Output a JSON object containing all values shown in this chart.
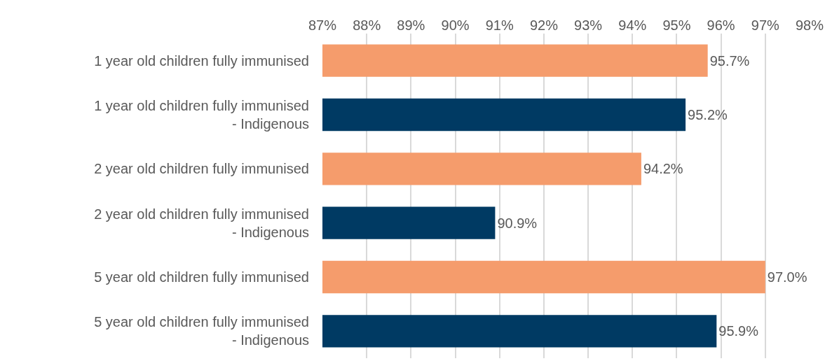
{
  "chart_data": {
    "type": "bar",
    "orientation": "horizontal",
    "categories": [
      "1 year old children fully immunised",
      "1 year old children fully immunised - Indigenous",
      "2 year old children fully immunised",
      "2 year old children fully immunised - Indigenous",
      "5 year old children fully immunised",
      "5 year old children fully immunised - Indigenous"
    ],
    "values": [
      95.7,
      95.2,
      94.2,
      90.9,
      97.0,
      95.9
    ],
    "colors": [
      "#f59c6c",
      "#003a63",
      "#f59c6c",
      "#003a63",
      "#f59c6c",
      "#003a63"
    ],
    "value_labels": [
      "95.7%",
      "95.2%",
      "94.2%",
      "90.9%",
      "97.0%",
      "95.9%"
    ],
    "xlim": [
      87,
      98
    ],
    "xticks": [
      {
        "value": 87,
        "label": "87%"
      },
      {
        "value": 88,
        "label": "88%"
      },
      {
        "value": 89,
        "label": "89%"
      },
      {
        "value": 90,
        "label": "90%"
      },
      {
        "value": 91,
        "label": "91%"
      },
      {
        "value": 92,
        "label": "92%"
      },
      {
        "value": 93,
        "label": "93%"
      },
      {
        "value": 94,
        "label": "94%"
      },
      {
        "value": 95,
        "label": "95%"
      },
      {
        "value": 96,
        "label": "96%"
      },
      {
        "value": 97,
        "label": "97%"
      },
      {
        "value": 98,
        "label": "98%"
      }
    ],
    "grid": "x"
  }
}
